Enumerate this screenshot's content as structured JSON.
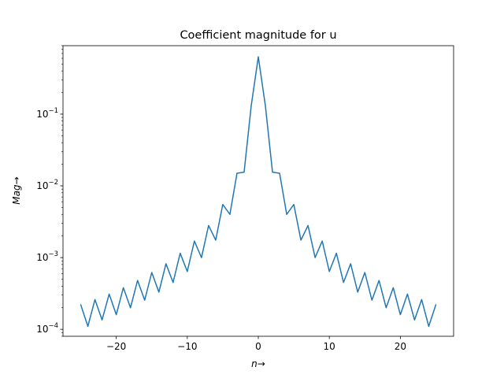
{
  "chart_data": {
    "type": "line",
    "title": "Coefficient magnitude for u",
    "xlabel_var": "n",
    "ylabel_var": "Mag",
    "arrow": "→",
    "xlim": [
      -27.5,
      27.5
    ],
    "ylim": [
      8e-05,
      0.9
    ],
    "yscale": "log",
    "grid": false,
    "x_ticks": [
      -20,
      -10,
      0,
      10,
      20
    ],
    "x_tick_labels": [
      "−20",
      "−10",
      "0",
      "10",
      "20"
    ],
    "y_ticks": [
      {
        "value": 0.0001,
        "base": "10",
        "exp": "−4"
      },
      {
        "value": 0.001,
        "base": "10",
        "exp": "−3"
      },
      {
        "value": 0.01,
        "base": "10",
        "exp": "−2"
      },
      {
        "value": 0.1,
        "base": "10",
        "exp": "−1"
      }
    ],
    "series": [
      {
        "color": "#1f77b4",
        "x": [
          -25,
          -24,
          -23,
          -22,
          -21,
          -20,
          -19,
          -18,
          -17,
          -16,
          -15,
          -14,
          -13,
          -12,
          -11,
          -10,
          -9,
          -8,
          -7,
          -6,
          -5,
          -4,
          -3,
          -2,
          -1,
          0,
          1,
          2,
          3,
          4,
          5,
          6,
          7,
          8,
          9,
          10,
          11,
          12,
          13,
          14,
          15,
          16,
          17,
          18,
          19,
          20,
          21,
          22,
          23,
          24,
          25
        ],
        "y": [
          0.00022,
          0.00011,
          0.00026,
          0.000135,
          0.00031,
          0.00016,
          0.00038,
          0.0002,
          0.00048,
          0.000255,
          0.00062,
          0.00033,
          0.00082,
          0.00045,
          0.00115,
          0.00064,
          0.0017,
          0.001,
          0.0028,
          0.00175,
          0.0055,
          0.004,
          0.015,
          0.0155,
          0.13,
          0.63,
          0.13,
          0.0155,
          0.015,
          0.004,
          0.0055,
          0.00175,
          0.0028,
          0.001,
          0.0017,
          0.00064,
          0.00115,
          0.00045,
          0.00082,
          0.00033,
          0.00062,
          0.000255,
          0.00048,
          0.0002,
          0.00038,
          0.00016,
          0.00031,
          0.000135,
          0.00026,
          0.00011,
          0.00022
        ]
      }
    ]
  }
}
